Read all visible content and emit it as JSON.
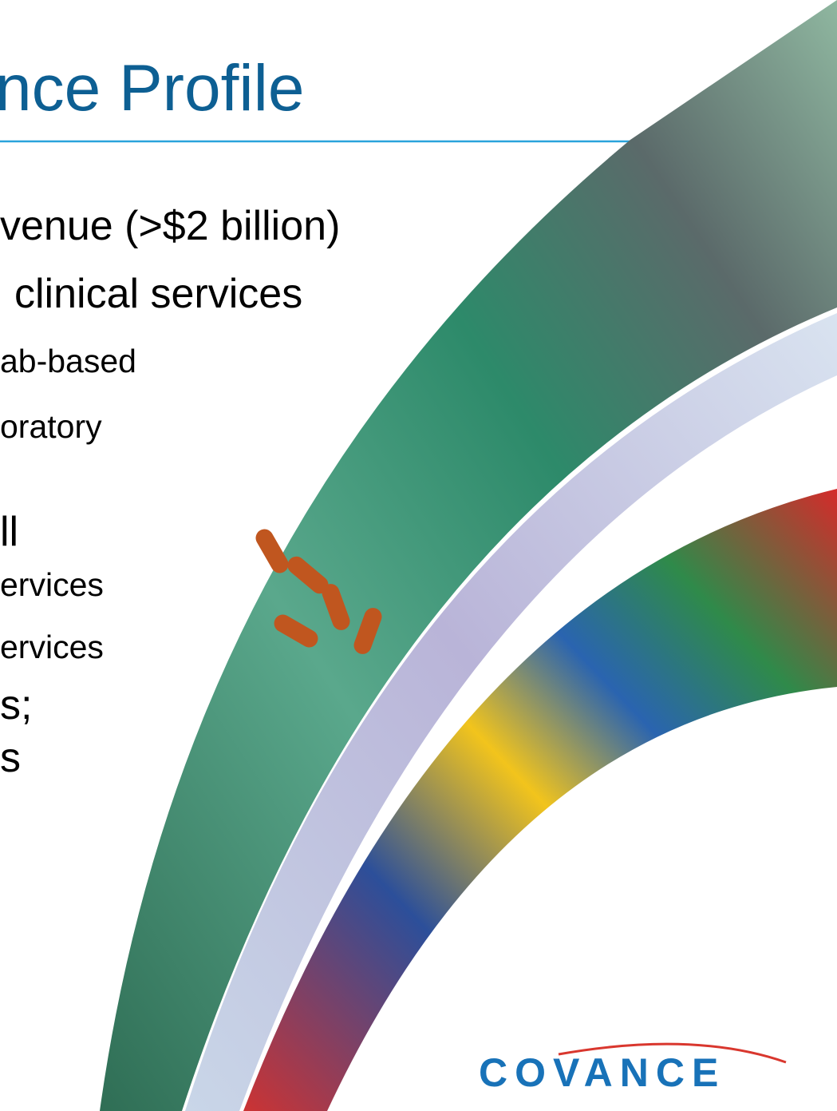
{
  "title": "nce Profile",
  "bullets": [
    "venue (>$2 billion)",
    "clinical services",
    "ab-based",
    "oratory",
    "ll",
    "ervices",
    "ervices",
    "s;",
    "s"
  ],
  "logo": "COVANCE"
}
